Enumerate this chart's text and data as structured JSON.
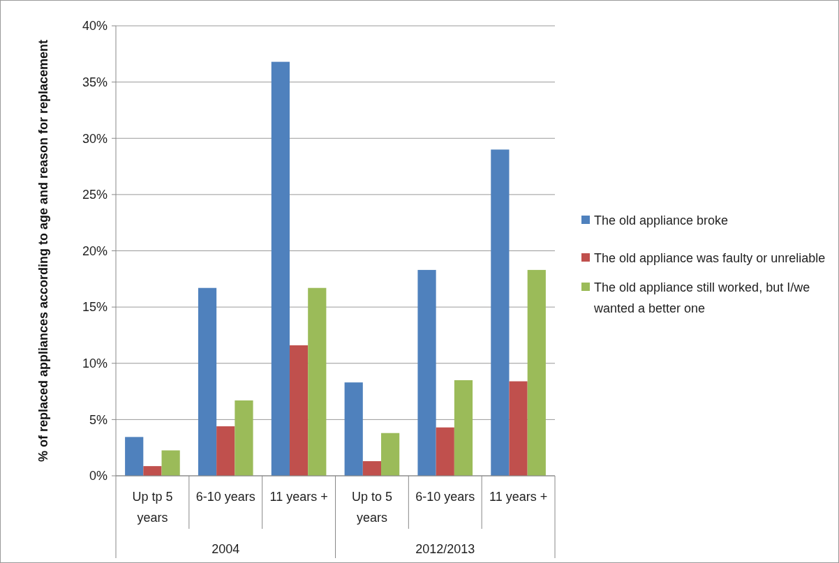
{
  "chart_data": {
    "type": "bar",
    "ylabel": "% of replaced appliances according to age and reason for replacement",
    "categories": [
      "Up tp 5 years",
      "6-10 years",
      "11 years +",
      "Up to 5 years",
      "6-10 years",
      "11 years +"
    ],
    "annotations": [
      "2004",
      "2012/2013"
    ],
    "series": [
      {
        "name": "The old appliance broke",
        "color": "#4f81bd",
        "values": [
          3.45,
          16.7,
          36.8,
          8.3,
          18.3,
          29.0
        ]
      },
      {
        "name": "The old appliance was faulty or unreliable",
        "color": "#c0504d",
        "values": [
          0.86,
          4.4,
          11.6,
          1.3,
          4.3,
          8.4
        ]
      },
      {
        "name": "The old appliance still worked, but I/we wanted a better one",
        "color": "#9bbb59",
        "values": [
          2.26,
          6.7,
          16.7,
          3.8,
          8.5,
          18.3
        ]
      }
    ],
    "ylim": [
      0,
      40
    ],
    "yticks": [
      {
        "value": 0,
        "label": "0%"
      },
      {
        "value": 5,
        "label": "5%"
      },
      {
        "value": 10,
        "label": "10%"
      },
      {
        "value": 15,
        "label": "15%"
      },
      {
        "value": 20,
        "label": "20%"
      },
      {
        "value": 25,
        "label": "25%"
      },
      {
        "value": 30,
        "label": "30%"
      },
      {
        "value": 35,
        "label": "35%"
      },
      {
        "value": 40,
        "label": "40%"
      }
    ],
    "grid": "y",
    "legend": "right"
  }
}
